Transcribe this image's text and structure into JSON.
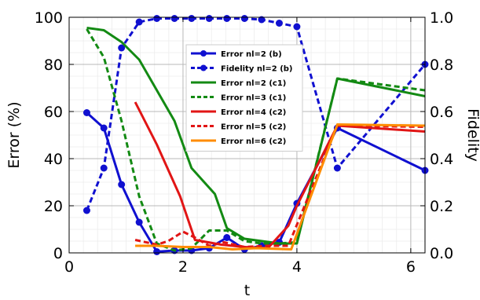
{
  "chart_data": {
    "type": "line",
    "xlabel": "t",
    "ylabel": "Error (%)",
    "y2label": "Fidelity",
    "xlim": [
      0,
      6.25
    ],
    "ylim": [
      0,
      100
    ],
    "y2lim": [
      0,
      1.0
    ],
    "xticks": [
      0,
      2,
      4,
      6
    ],
    "yticks": [
      0,
      20,
      40,
      60,
      80,
      100
    ],
    "y2ticks": [
      "0.0",
      "0.2",
      "0.4",
      "0.6",
      "0.8",
      "1.0"
    ],
    "grid": true,
    "minor_grid": true,
    "legend_position": "upper-center-right",
    "series": [
      {
        "name": "Error nl=2 (b)",
        "axis": "left",
        "color": "#1010d0",
        "dash": "solid",
        "marker": "circle",
        "x": [
          0.31,
          0.61,
          0.92,
          1.23,
          1.54,
          1.85,
          2.15,
          2.46,
          2.77,
          3.08,
          3.38,
          3.69,
          4.0,
          4.71,
          6.25
        ],
        "y": [
          59.5,
          53.0,
          29.0,
          13.0,
          0.5,
          1.0,
          1.0,
          2.0,
          6.5,
          1.5,
          3.0,
          4.5,
          21.0,
          53.0,
          35.0
        ]
      },
      {
        "name": "Fidelity nl=2 (b)",
        "axis": "right",
        "color": "#1010d0",
        "dash": "dashed",
        "marker": "circle",
        "x": [
          0.31,
          0.61,
          0.92,
          1.23,
          1.54,
          1.85,
          2.15,
          2.46,
          2.77,
          3.08,
          3.38,
          3.69,
          4.0,
          4.71,
          6.25
        ],
        "y": [
          0.18,
          0.36,
          0.87,
          0.98,
          0.995,
          0.995,
          0.995,
          0.995,
          0.995,
          0.995,
          0.99,
          0.975,
          0.96,
          0.36,
          0.8
        ]
      },
      {
        "name": "Error nl=2 (c1)",
        "axis": "left",
        "color": "#138a13",
        "dash": "solid",
        "marker": "none",
        "x": [
          0.31,
          0.61,
          0.92,
          1.23,
          1.85,
          2.15,
          2.56,
          2.77,
          3.08,
          3.69,
          4.0,
          4.71,
          6.25
        ],
        "y": [
          95.5,
          94.5,
          89.5,
          82.0,
          56.0,
          36.0,
          25.0,
          10.5,
          6.0,
          4.0,
          4.0,
          74.0,
          66.5
        ]
      },
      {
        "name": "Error nl=3 (c1)",
        "axis": "left",
        "color": "#138a13",
        "dash": "dashed",
        "marker": "none",
        "x": [
          0.31,
          0.61,
          0.92,
          1.23,
          1.54,
          1.85,
          2.15,
          2.46,
          2.77,
          3.08,
          3.38,
          3.69,
          4.0,
          4.71,
          6.25
        ],
        "y": [
          95.0,
          83.0,
          56.0,
          24.0,
          4.0,
          1.0,
          2.0,
          9.5,
          9.5,
          5.0,
          4.0,
          4.0,
          4.5,
          74.0,
          69.0
        ]
      },
      {
        "name": "Error nl=4 (c2)",
        "axis": "left",
        "color": "#e11515",
        "dash": "solid",
        "marker": "none",
        "x": [
          1.16,
          1.54,
          1.95,
          2.21,
          2.67,
          3.08,
          3.49,
          3.85,
          4.0,
          4.71,
          6.25
        ],
        "y": [
          64.0,
          46.0,
          24.0,
          5.5,
          3.5,
          2.5,
          2.0,
          11.5,
          20.0,
          54.0,
          51.5
        ]
      },
      {
        "name": "Error nl=5 (c2)",
        "axis": "left",
        "color": "#e11515",
        "dash": "dashed",
        "marker": "none",
        "x": [
          1.16,
          1.54,
          1.74,
          2.0,
          2.21,
          2.46,
          2.72,
          3.08,
          3.49,
          3.85,
          4.71,
          6.25
        ],
        "y": [
          5.5,
          3.5,
          5.0,
          9.0,
          6.5,
          3.0,
          4.5,
          2.5,
          3.0,
          3.0,
          54.0,
          53.5
        ]
      },
      {
        "name": "Error nl=6 (c2)",
        "axis": "left",
        "color": "#ff8c00",
        "dash": "solid",
        "marker": "none",
        "x": [
          1.16,
          1.54,
          2.0,
          2.46,
          2.87,
          3.28,
          3.9,
          4.71,
          6.25
        ],
        "y": [
          3.0,
          3.0,
          2.5,
          2.5,
          1.5,
          2.0,
          1.5,
          54.5,
          54.0
        ]
      }
    ]
  }
}
